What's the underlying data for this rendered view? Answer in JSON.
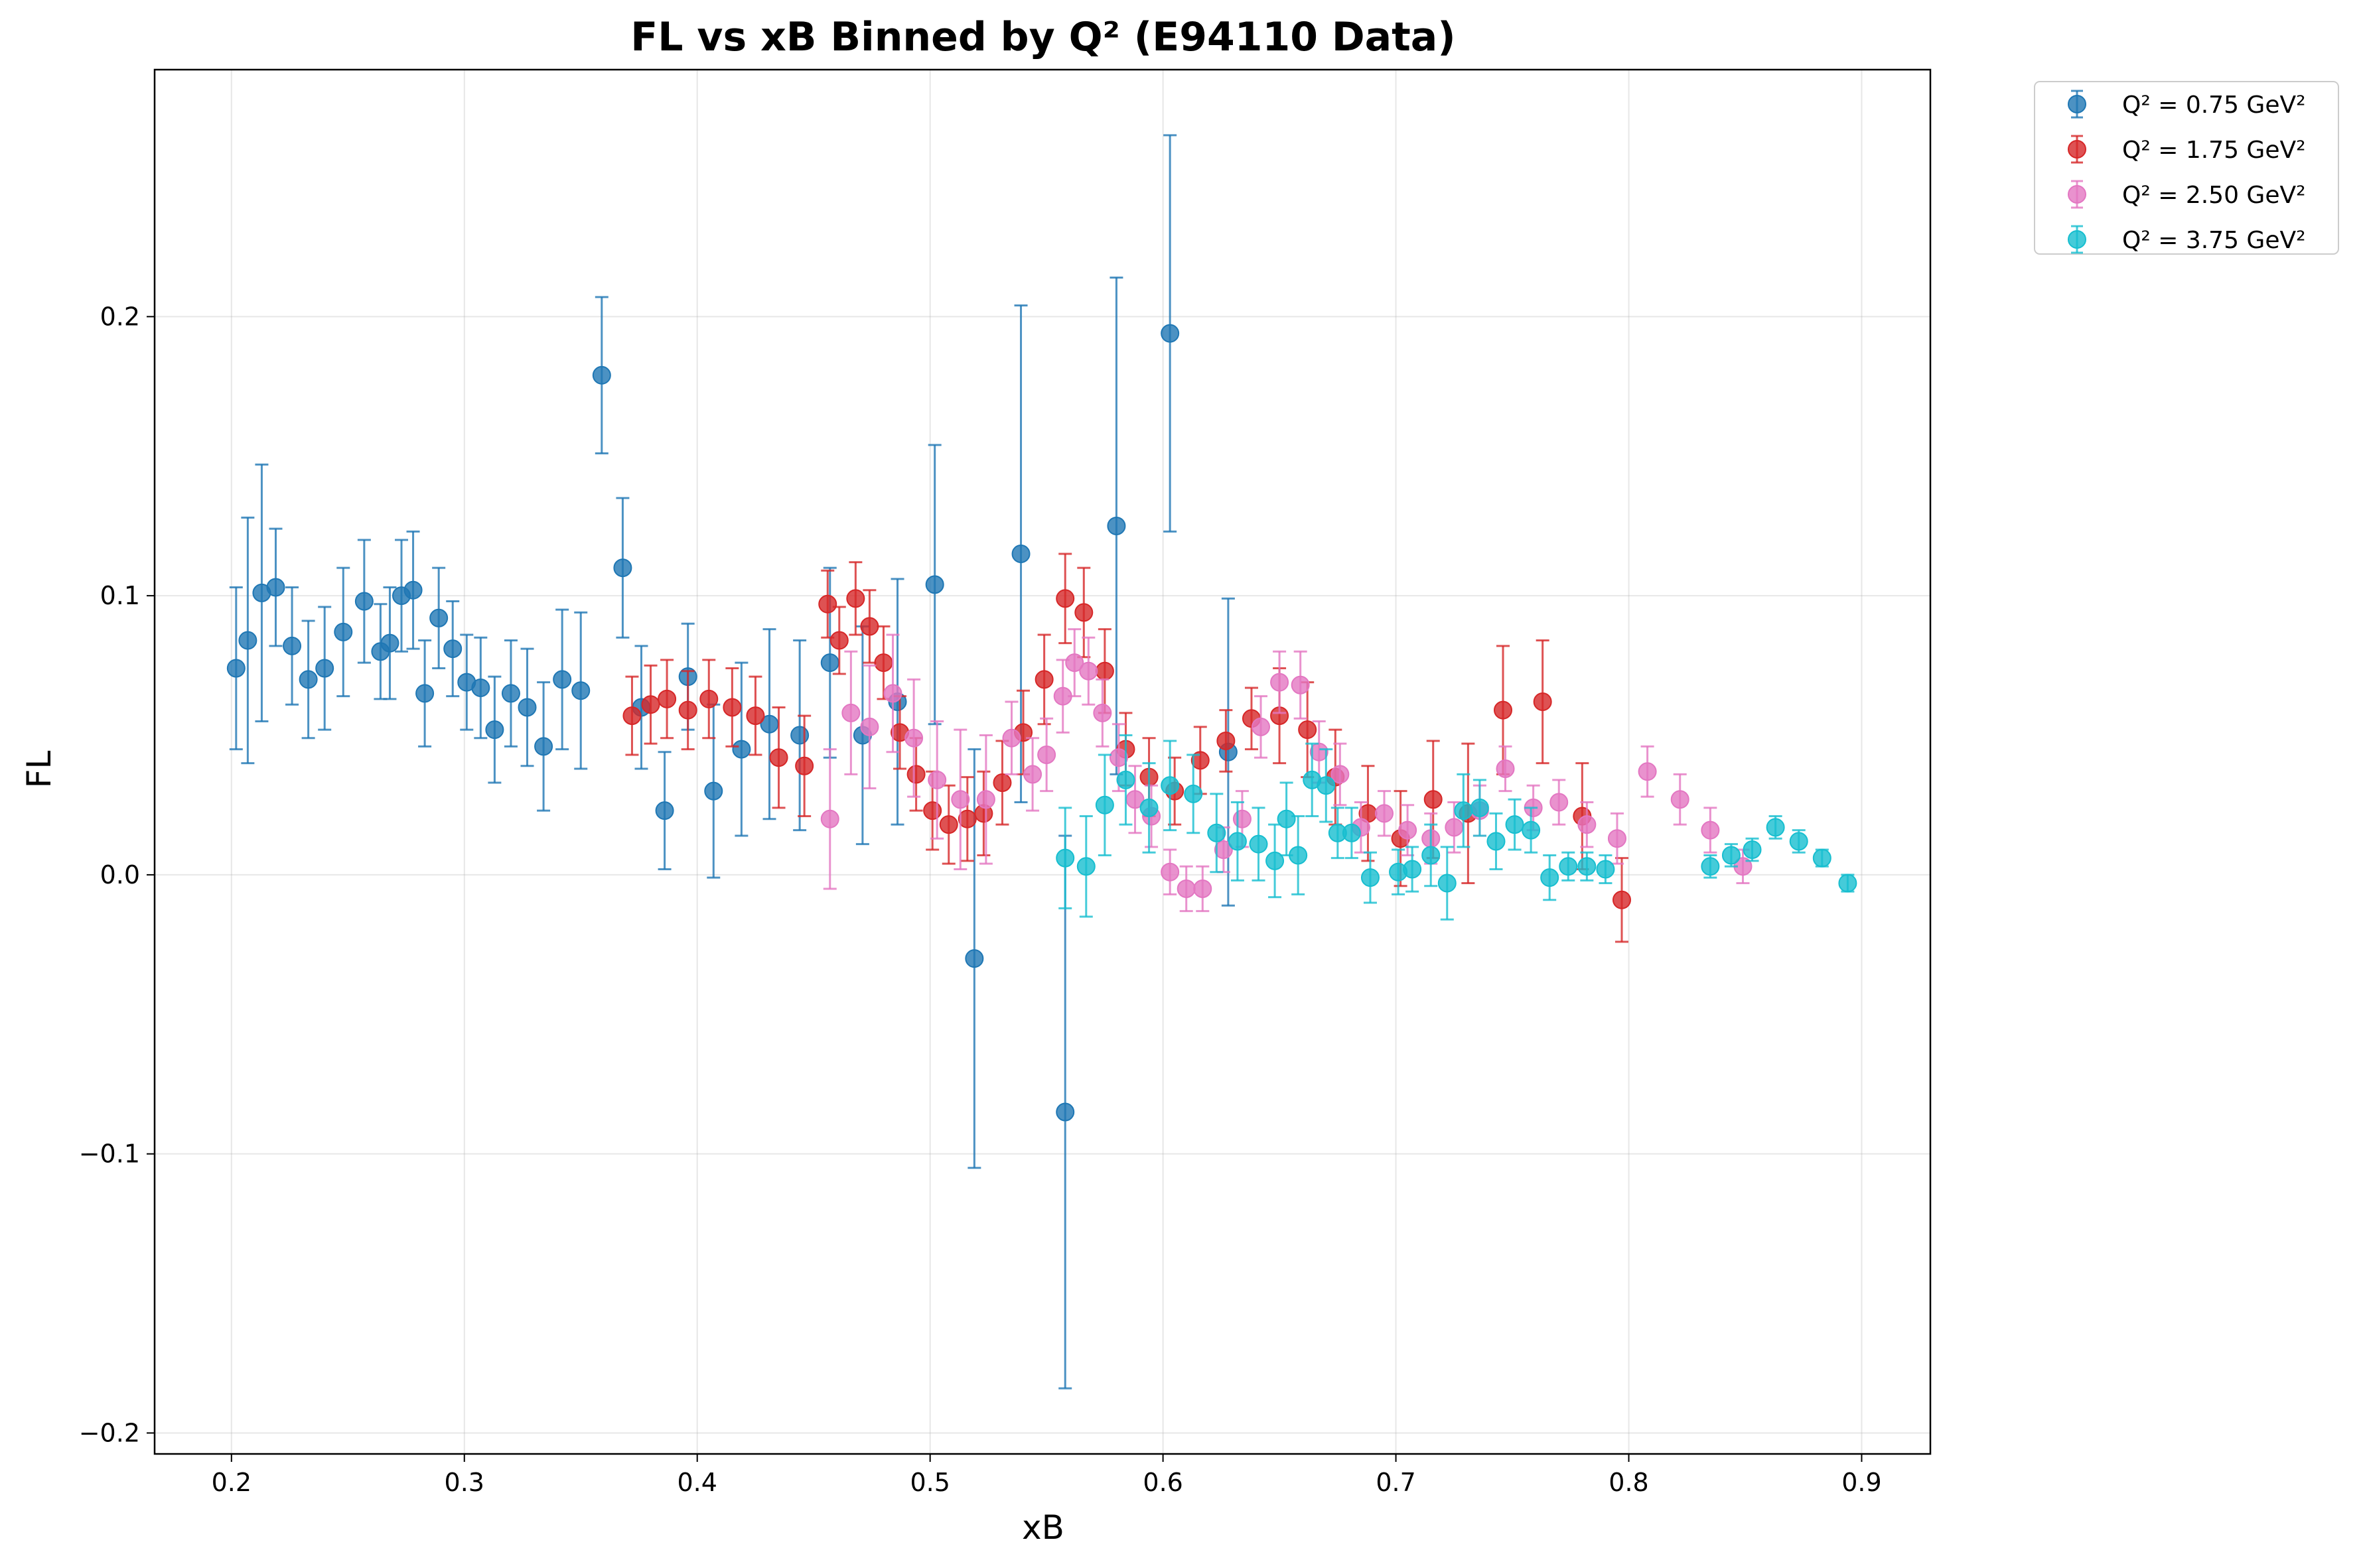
{
  "chart_data": {
    "type": "scatter",
    "title": "FL vs xB Binned by Q² (E94110 Data)",
    "xlabel": "xB",
    "ylabel": "FL",
    "xlim": [
      0.167,
      0.9295
    ],
    "ylim": [
      -0.2075,
      0.2885
    ],
    "xticks": [
      0.2,
      0.3,
      0.4,
      0.5,
      0.6,
      0.7,
      0.8,
      0.9
    ],
    "yticks": [
      -0.2,
      -0.1,
      0.0,
      0.1,
      0.2
    ],
    "xtick_labels": [
      "0.2",
      "0.3",
      "0.4",
      "0.5",
      "0.6",
      "0.7",
      "0.8",
      "0.9"
    ],
    "ytick_labels": [
      "−0.2",
      "−0.1",
      "0.0",
      "0.1",
      "0.2"
    ],
    "grid": true,
    "legend_position": "outside-top-right",
    "series": [
      {
        "name": "Q² = 0.75 GeV²",
        "color": "#1f77b4",
        "points": [
          [
            0.202,
            0.074,
            0.029
          ],
          [
            0.207,
            0.084,
            0.044
          ],
          [
            0.213,
            0.101,
            0.046
          ],
          [
            0.219,
            0.103,
            0.021
          ],
          [
            0.226,
            0.082,
            0.021
          ],
          [
            0.233,
            0.07,
            0.021
          ],
          [
            0.24,
            0.074,
            0.022
          ],
          [
            0.248,
            0.087,
            0.023
          ],
          [
            0.257,
            0.098,
            0.022
          ],
          [
            0.264,
            0.08,
            0.017
          ],
          [
            0.268,
            0.083,
            0.02
          ],
          [
            0.273,
            0.1,
            0.02
          ],
          [
            0.278,
            0.102,
            0.021
          ],
          [
            0.283,
            0.065,
            0.019
          ],
          [
            0.289,
            0.092,
            0.018
          ],
          [
            0.295,
            0.081,
            0.017
          ],
          [
            0.301,
            0.069,
            0.017
          ],
          [
            0.307,
            0.067,
            0.018
          ],
          [
            0.313,
            0.052,
            0.019
          ],
          [
            0.32,
            0.065,
            0.019
          ],
          [
            0.327,
            0.06,
            0.021
          ],
          [
            0.334,
            0.046,
            0.023
          ],
          [
            0.342,
            0.07,
            0.025
          ],
          [
            0.35,
            0.066,
            0.028
          ],
          [
            0.359,
            0.179,
            0.028
          ],
          [
            0.368,
            0.11,
            0.025
          ],
          [
            0.376,
            0.06,
            0.022
          ],
          [
            0.386,
            0.023,
            0.021
          ],
          [
            0.396,
            0.071,
            0.019
          ],
          [
            0.407,
            0.03,
            0.031
          ],
          [
            0.419,
            0.045,
            0.031
          ],
          [
            0.431,
            0.054,
            0.034
          ],
          [
            0.444,
            0.05,
            0.034
          ],
          [
            0.457,
            0.076,
            0.034
          ],
          [
            0.471,
            0.05,
            0.039
          ],
          [
            0.486,
            0.062,
            0.044
          ],
          [
            0.502,
            0.104,
            0.05
          ],
          [
            0.519,
            -0.03,
            0.075
          ],
          [
            0.539,
            0.115,
            0.089
          ],
          [
            0.558,
            -0.085,
            0.099
          ],
          [
            0.58,
            0.125,
            0.089
          ],
          [
            0.603,
            0.194,
            0.071
          ],
          [
            0.628,
            0.044,
            0.055
          ]
        ]
      },
      {
        "name": "Q² = 1.75 GeV²",
        "color": "#d62728",
        "points": [
          [
            0.372,
            0.057,
            0.014
          ],
          [
            0.38,
            0.061,
            0.014
          ],
          [
            0.387,
            0.063,
            0.014
          ],
          [
            0.396,
            0.059,
            0.014
          ],
          [
            0.405,
            0.063,
            0.014
          ],
          [
            0.415,
            0.06,
            0.014
          ],
          [
            0.425,
            0.057,
            0.014
          ],
          [
            0.435,
            0.042,
            0.018
          ],
          [
            0.446,
            0.039,
            0.018
          ],
          [
            0.456,
            0.097,
            0.012
          ],
          [
            0.461,
            0.084,
            0.012
          ],
          [
            0.468,
            0.099,
            0.013
          ],
          [
            0.474,
            0.089,
            0.013
          ],
          [
            0.48,
            0.076,
            0.013
          ],
          [
            0.487,
            0.051,
            0.013
          ],
          [
            0.494,
            0.036,
            0.013
          ],
          [
            0.501,
            0.023,
            0.014
          ],
          [
            0.508,
            0.018,
            0.014
          ],
          [
            0.516,
            0.02,
            0.015
          ],
          [
            0.523,
            0.022,
            0.015
          ],
          [
            0.531,
            0.033,
            0.015
          ],
          [
            0.54,
            0.051,
            0.015
          ],
          [
            0.549,
            0.07,
            0.016
          ],
          [
            0.558,
            0.099,
            0.016
          ],
          [
            0.566,
            0.094,
            0.016
          ],
          [
            0.575,
            0.073,
            0.015
          ],
          [
            0.584,
            0.045,
            0.013
          ],
          [
            0.594,
            0.035,
            0.014
          ],
          [
            0.605,
            0.03,
            0.012
          ],
          [
            0.616,
            0.041,
            0.012
          ],
          [
            0.627,
            0.048,
            0.011
          ],
          [
            0.638,
            0.056,
            0.011
          ],
          [
            0.65,
            0.057,
            0.017
          ],
          [
            0.662,
            0.052,
            0.017
          ],
          [
            0.674,
            0.035,
            0.017
          ],
          [
            0.688,
            0.022,
            0.017
          ],
          [
            0.702,
            0.013,
            0.017
          ],
          [
            0.716,
            0.027,
            0.021
          ],
          [
            0.731,
            0.022,
            0.025
          ],
          [
            0.746,
            0.059,
            0.023
          ],
          [
            0.763,
            0.062,
            0.022
          ],
          [
            0.78,
            0.021,
            0.019
          ],
          [
            0.797,
            -0.009,
            0.015
          ]
        ]
      },
      {
        "name": "Q² = 2.50 GeV²",
        "color": "#e377c2",
        "points": [
          [
            0.457,
            0.02,
            0.025
          ],
          [
            0.466,
            0.058,
            0.022
          ],
          [
            0.474,
            0.053,
            0.022
          ],
          [
            0.484,
            0.065,
            0.021
          ],
          [
            0.493,
            0.049,
            0.021
          ],
          [
            0.503,
            0.034,
            0.021
          ],
          [
            0.513,
            0.027,
            0.025
          ],
          [
            0.524,
            0.027,
            0.023
          ],
          [
            0.535,
            0.049,
            0.013
          ],
          [
            0.544,
            0.036,
            0.013
          ],
          [
            0.55,
            0.043,
            0.013
          ],
          [
            0.557,
            0.064,
            0.013
          ],
          [
            0.562,
            0.076,
            0.012
          ],
          [
            0.568,
            0.073,
            0.012
          ],
          [
            0.574,
            0.058,
            0.012
          ],
          [
            0.581,
            0.042,
            0.012
          ],
          [
            0.588,
            0.027,
            0.012
          ],
          [
            0.595,
            0.021,
            0.011
          ],
          [
            0.603,
            0.001,
            0.008
          ],
          [
            0.61,
            -0.005,
            0.008
          ],
          [
            0.617,
            -0.005,
            0.008
          ],
          [
            0.626,
            0.009,
            0.008
          ],
          [
            0.634,
            0.02,
            0.01
          ],
          [
            0.642,
            0.053,
            0.011
          ],
          [
            0.65,
            0.069,
            0.011
          ],
          [
            0.659,
            0.068,
            0.012
          ],
          [
            0.667,
            0.044,
            0.011
          ],
          [
            0.676,
            0.036,
            0.011
          ],
          [
            0.685,
            0.017,
            0.009
          ],
          [
            0.695,
            0.022,
            0.008
          ],
          [
            0.705,
            0.016,
            0.009
          ],
          [
            0.715,
            0.013,
            0.009
          ],
          [
            0.725,
            0.017,
            0.009
          ],
          [
            0.736,
            0.023,
            0.009
          ],
          [
            0.747,
            0.038,
            0.008
          ],
          [
            0.759,
            0.024,
            0.008
          ],
          [
            0.77,
            0.026,
            0.008
          ],
          [
            0.782,
            0.018,
            0.008
          ],
          [
            0.795,
            0.013,
            0.009
          ],
          [
            0.808,
            0.037,
            0.009
          ],
          [
            0.822,
            0.027,
            0.009
          ],
          [
            0.835,
            0.016,
            0.008
          ],
          [
            0.849,
            0.003,
            0.006
          ]
        ]
      },
      {
        "name": "Q² = 3.75 GeV²",
        "color": "#17becf",
        "points": [
          [
            0.558,
            0.006,
            0.018
          ],
          [
            0.567,
            0.003,
            0.018
          ],
          [
            0.575,
            0.025,
            0.018
          ],
          [
            0.584,
            0.034,
            0.016
          ],
          [
            0.594,
            0.024,
            0.016
          ],
          [
            0.603,
            0.032,
            0.016
          ],
          [
            0.613,
            0.029,
            0.014
          ],
          [
            0.623,
            0.015,
            0.014
          ],
          [
            0.632,
            0.012,
            0.014
          ],
          [
            0.641,
            0.011,
            0.013
          ],
          [
            0.648,
            0.005,
            0.013
          ],
          [
            0.653,
            0.02,
            0.013
          ],
          [
            0.658,
            0.007,
            0.014
          ],
          [
            0.664,
            0.034,
            0.013
          ],
          [
            0.67,
            0.032,
            0.013
          ],
          [
            0.675,
            0.015,
            0.009
          ],
          [
            0.681,
            0.015,
            0.009
          ],
          [
            0.689,
            -0.001,
            0.009
          ],
          [
            0.701,
            0.001,
            0.008
          ],
          [
            0.707,
            0.002,
            0.008
          ],
          [
            0.715,
            0.007,
            0.011
          ],
          [
            0.722,
            -0.003,
            0.013
          ],
          [
            0.729,
            0.023,
            0.013
          ],
          [
            0.736,
            0.024,
            0.01
          ],
          [
            0.743,
            0.012,
            0.01
          ],
          [
            0.751,
            0.018,
            0.009
          ],
          [
            0.758,
            0.016,
            0.008
          ],
          [
            0.766,
            -0.001,
            0.008
          ],
          [
            0.774,
            0.003,
            0.005
          ],
          [
            0.782,
            0.003,
            0.005
          ],
          [
            0.79,
            0.002,
            0.005
          ],
          [
            0.835,
            0.003,
            0.004
          ],
          [
            0.844,
            0.007,
            0.004
          ],
          [
            0.853,
            0.009,
            0.004
          ],
          [
            0.863,
            0.017,
            0.004
          ],
          [
            0.873,
            0.012,
            0.004
          ],
          [
            0.883,
            0.006,
            0.003
          ],
          [
            0.894,
            -0.003,
            0.003
          ]
        ]
      }
    ]
  }
}
